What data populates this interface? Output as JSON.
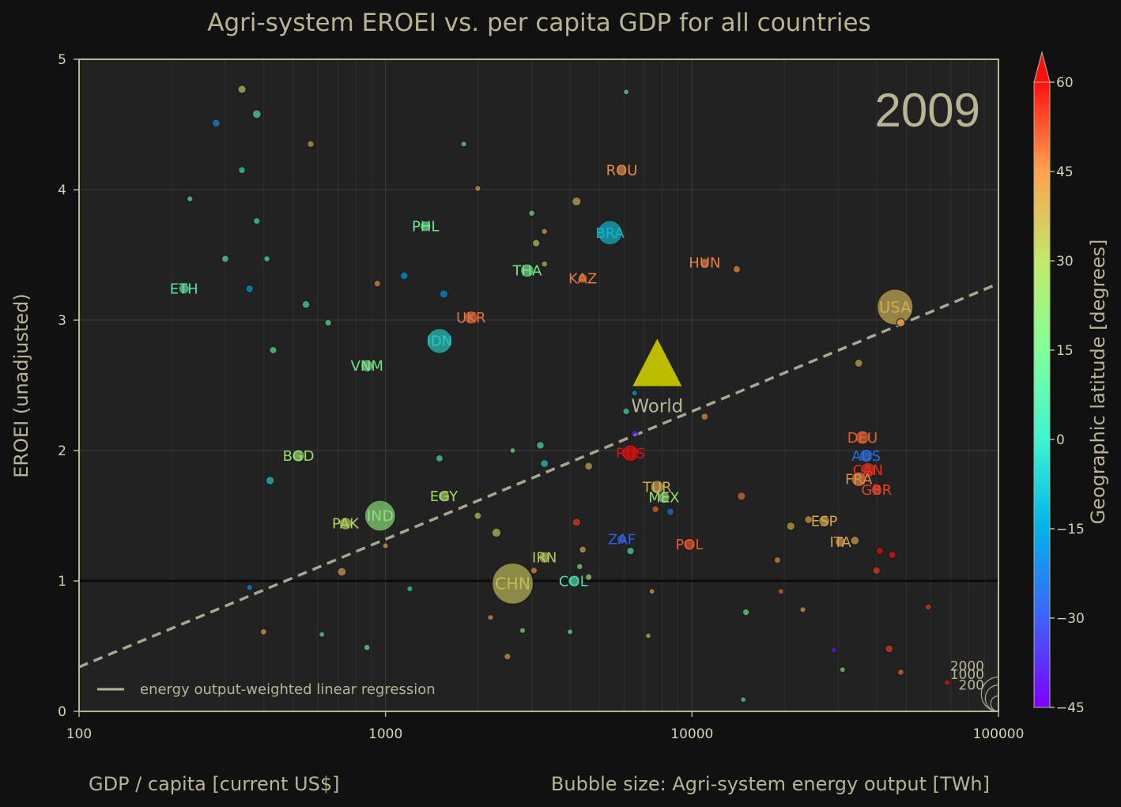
{
  "chart_data": {
    "type": "scatter",
    "title": "Agri-system EROEI vs. per capita GDP for all countries",
    "year_label": "2009",
    "xlabel": "GDP / capita [current US$]",
    "ylabel": "EROEI (unadjusted)",
    "size_label": "Bubble size: Agri-system energy output [TWh]",
    "x_scale": "log",
    "xlim": [
      100,
      100000
    ],
    "ylim": [
      0,
      5
    ],
    "x_ticks": [
      100,
      1000,
      10000,
      100000
    ],
    "x_tick_labels": [
      "100",
      "1000",
      "10000",
      "100000"
    ],
    "y_ticks": [
      0,
      1,
      2,
      3,
      4,
      5
    ],
    "y_tick_labels": [
      "0",
      "1",
      "2",
      "3",
      "4",
      "5"
    ],
    "grid": true,
    "reference_line_y": 1,
    "regression": {
      "label": "energy output-weighted linear regression",
      "points": [
        [
          100,
          0.34
        ],
        [
          100000,
          3.28
        ]
      ]
    },
    "legend_position": "bottom-left",
    "colorbar": {
      "label": "Geographic latitude [degrees]",
      "min": -45,
      "max": 60,
      "ticks": [
        60,
        45,
        30,
        15,
        0,
        -15,
        -30,
        -45
      ],
      "tick_labels": [
        "60",
        "45",
        "30",
        "15",
        "0",
        "−15",
        "−30",
        "−45"
      ]
    },
    "size_legend": {
      "values": [
        2000,
        1000,
        200
      ],
      "labels": [
        "2000",
        "1000",
        "200"
      ]
    },
    "world": {
      "label": "World",
      "x": 7700,
      "y": 2.7
    },
    "labeled_points": [
      {
        "label": "USA",
        "x": 46000,
        "y": 3.1,
        "size": 5300,
        "lat": 38
      },
      {
        "label": "CHN",
        "x": 2600,
        "y": 0.98,
        "size": 7200,
        "lat": 35
      },
      {
        "label": "IND",
        "x": 960,
        "y": 1.5,
        "size": 3700,
        "lat": 21
      },
      {
        "label": "BRA",
        "x": 5400,
        "y": 3.67,
        "size": 2100,
        "lat": -10
      },
      {
        "label": "IDN",
        "x": 1500,
        "y": 2.84,
        "size": 2250,
        "lat": -5
      },
      {
        "label": "RUS",
        "x": 6300,
        "y": 1.98,
        "size": 820,
        "lat": 60
      },
      {
        "label": "UKR",
        "x": 1900,
        "y": 3.02,
        "size": 400,
        "lat": 49
      },
      {
        "label": "THA",
        "x": 2900,
        "y": 3.38,
        "size": 420,
        "lat": 15
      },
      {
        "label": "PHL",
        "x": 1350,
        "y": 3.72,
        "size": 200,
        "lat": 13
      },
      {
        "label": "VNM",
        "x": 870,
        "y": 2.65,
        "size": 300,
        "lat": 16
      },
      {
        "label": "BGD",
        "x": 520,
        "y": 1.96,
        "size": 300,
        "lat": 24
      },
      {
        "label": "PAK",
        "x": 740,
        "y": 1.44,
        "size": 330,
        "lat": 30
      },
      {
        "label": "EGY",
        "x": 1550,
        "y": 1.65,
        "size": 230,
        "lat": 27
      },
      {
        "label": "ETH",
        "x": 220,
        "y": 3.24,
        "size": 180,
        "lat": 8
      },
      {
        "label": "IRN",
        "x": 3300,
        "y": 1.18,
        "size": 230,
        "lat": 32
      },
      {
        "label": "COL",
        "x": 4100,
        "y": 1.0,
        "size": 180,
        "lat": 4
      },
      {
        "label": "TUR",
        "x": 7700,
        "y": 1.72,
        "size": 400,
        "lat": 39
      },
      {
        "label": "MEX",
        "x": 8100,
        "y": 1.64,
        "size": 260,
        "lat": 23
      },
      {
        "label": "ZAF",
        "x": 5900,
        "y": 1.32,
        "size": 140,
        "lat": -29
      },
      {
        "label": "POL",
        "x": 9800,
        "y": 1.28,
        "size": 270,
        "lat": 52
      },
      {
        "label": "KAZ",
        "x": 4400,
        "y": 3.32,
        "size": 130,
        "lat": 48
      },
      {
        "label": "ROU",
        "x": 5900,
        "y": 4.15,
        "size": 110,
        "lat": 46
      },
      {
        "label": "HUN",
        "x": 11000,
        "y": 3.44,
        "size": 100,
        "lat": 47
      },
      {
        "label": "DEU",
        "x": 36000,
        "y": 2.1,
        "size": 460,
        "lat": 51
      },
      {
        "label": "AUS",
        "x": 37000,
        "y": 1.96,
        "size": 420,
        "lat": -25
      },
      {
        "label": "CAN",
        "x": 37500,
        "y": 1.85,
        "size": 600,
        "lat": 56
      },
      {
        "label": "FRA",
        "x": 35000,
        "y": 1.78,
        "size": 550,
        "lat": 46
      },
      {
        "label": "GBR",
        "x": 40000,
        "y": 1.7,
        "size": 200,
        "lat": 54
      },
      {
        "label": "ESP",
        "x": 27000,
        "y": 1.46,
        "size": 200,
        "lat": 40
      },
      {
        "label": "ITA",
        "x": 30500,
        "y": 1.3,
        "size": 170,
        "lat": 42
      }
    ],
    "other_points": [
      [
        340,
        4.77,
        60,
        30
      ],
      [
        380,
        4.58,
        80,
        8
      ],
      [
        280,
        4.51,
        55,
        -20
      ],
      [
        570,
        4.35,
        20,
        40
      ],
      [
        340,
        4.15,
        25,
        0
      ],
      [
        230,
        3.93,
        6,
        10
      ],
      [
        380,
        3.76,
        18,
        5
      ],
      [
        300,
        3.47,
        30,
        10
      ],
      [
        410,
        3.47,
        10,
        5
      ],
      [
        360,
        3.24,
        45,
        -15
      ],
      [
        550,
        3.12,
        45,
        5
      ],
      [
        650,
        2.98,
        20,
        10
      ],
      [
        430,
        2.77,
        35,
        12
      ],
      [
        420,
        1.77,
        70,
        -5
      ],
      [
        720,
        1.07,
        80,
        40
      ],
      [
        1150,
        3.34,
        45,
        -15
      ],
      [
        1550,
        3.2,
        70,
        -20
      ],
      [
        3100,
        3.59,
        40,
        30
      ],
      [
        4200,
        3.91,
        95,
        38
      ],
      [
        3000,
        3.82,
        10,
        15
      ],
      [
        3300,
        3.68,
        8,
        40
      ],
      [
        3300,
        3.43,
        10,
        35
      ],
      [
        940,
        3.28,
        17,
        45
      ],
      [
        2000,
        4.01,
        6,
        40
      ],
      [
        1800,
        4.35,
        5,
        10
      ],
      [
        6100,
        4.75,
        3,
        10
      ],
      [
        2600,
        2.0,
        3,
        15
      ],
      [
        3200,
        2.04,
        45,
        5
      ],
      [
        3300,
        1.9,
        60,
        -5
      ],
      [
        1500,
        1.94,
        30,
        5
      ],
      [
        4600,
        1.88,
        50,
        40
      ],
      [
        4200,
        1.45,
        70,
        55
      ],
      [
        4400,
        1.24,
        25,
        38
      ],
      [
        2300,
        1.37,
        100,
        30
      ],
      [
        2000,
        1.5,
        30,
        30
      ],
      [
        1000,
        1.27,
        6,
        40
      ],
      [
        3050,
        1.08,
        20,
        45
      ],
      [
        4300,
        1.11,
        10,
        20
      ],
      [
        4600,
        1.03,
        20,
        25
      ],
      [
        2500,
        0.42,
        20,
        42
      ],
      [
        1200,
        0.94,
        5,
        0
      ],
      [
        2800,
        0.62,
        5,
        20
      ],
      [
        4000,
        0.61,
        4,
        15
      ],
      [
        2200,
        0.72,
        7,
        45
      ],
      [
        400,
        0.61,
        14,
        40
      ],
      [
        360,
        0.95,
        10,
        -20
      ],
      [
        870,
        0.49,
        10,
        15
      ],
      [
        620,
        0.59,
        3,
        10
      ],
      [
        6300,
        1.23,
        40,
        5
      ],
      [
        6500,
        2.13,
        25,
        -40
      ],
      [
        6100,
        2.3,
        20,
        5
      ],
      [
        6500,
        2.44,
        5,
        -15
      ],
      [
        11000,
        2.26,
        30,
        45
      ],
      [
        7600,
        1.55,
        25,
        50
      ],
      [
        8500,
        1.53,
        40,
        -25
      ],
      [
        14500,
        1.65,
        70,
        50
      ],
      [
        14000,
        3.39,
        35,
        45
      ],
      [
        21000,
        1.42,
        65,
        40
      ],
      [
        24000,
        1.47,
        50,
        42
      ],
      [
        34000,
        1.31,
        80,
        40
      ],
      [
        35000,
        2.67,
        55,
        40
      ],
      [
        48000,
        2.98,
        70,
        45
      ],
      [
        41000,
        1.23,
        35,
        60
      ],
      [
        45000,
        1.2,
        40,
        60
      ],
      [
        40000,
        1.08,
        45,
        55
      ],
      [
        44000,
        0.48,
        50,
        55
      ],
      [
        48000,
        0.3,
        12,
        50
      ],
      [
        59000,
        0.8,
        12,
        55
      ],
      [
        68000,
        0.22,
        8,
        60
      ],
      [
        19000,
        1.16,
        15,
        45
      ],
      [
        15000,
        0.76,
        20,
        15
      ],
      [
        29000,
        0.47,
        10,
        -42
      ],
      [
        23000,
        0.78,
        5,
        40
      ],
      [
        19500,
        0.92,
        4,
        50
      ],
      [
        7400,
        0.92,
        4,
        40
      ],
      [
        14700,
        0.09,
        2,
        10
      ],
      [
        31000,
        0.32,
        3,
        20
      ],
      [
        7200,
        0.58,
        2,
        35
      ]
    ]
  }
}
